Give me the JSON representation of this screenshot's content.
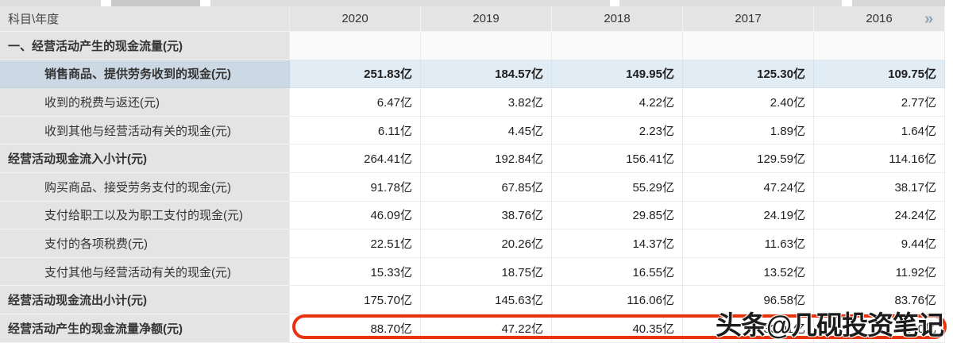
{
  "table": {
    "corner_label": "科目\\年度",
    "years": [
      "2020",
      "2019",
      "2018",
      "2017",
      "2016"
    ],
    "pager_icon": "»",
    "rows": [
      {
        "label": "一、经营活动产生的现金流量(元)",
        "style": "section",
        "values": [
          "",
          "",
          "",
          "",
          ""
        ]
      },
      {
        "label": "销售商品、提供劳务收到的现金(元)",
        "style": "highlight",
        "values": [
          "251.83亿",
          "184.57亿",
          "149.95亿",
          "125.30亿",
          "109.75亿"
        ]
      },
      {
        "label": "收到的税费与返还(元)",
        "style": "item",
        "values": [
          "6.47亿",
          "3.82亿",
          "4.22亿",
          "2.40亿",
          "2.77亿"
        ]
      },
      {
        "label": "收到其他与经营活动有关的现金(元)",
        "style": "item",
        "values": [
          "6.11亿",
          "4.45亿",
          "2.23亿",
          "1.89亿",
          "1.64亿"
        ]
      },
      {
        "label": "经营活动现金流入小计(元)",
        "style": "subtotal",
        "values": [
          "264.41亿",
          "192.84亿",
          "156.41亿",
          "129.59亿",
          "114.16亿"
        ]
      },
      {
        "label": "购买商品、接受劳务支付的现金(元)",
        "style": "item",
        "values": [
          "91.78亿",
          "67.85亿",
          "55.29亿",
          "47.24亿",
          "38.17亿"
        ]
      },
      {
        "label": "支付给职工以及为职工支付的现金(元)",
        "style": "item",
        "values": [
          "46.09亿",
          "38.76亿",
          "29.85亿",
          "24.19亿",
          "24.24亿"
        ]
      },
      {
        "label": "支付的各项税费(元)",
        "style": "item",
        "values": [
          "22.51亿",
          "20.26亿",
          "14.37亿",
          "11.63亿",
          "9.44亿"
        ]
      },
      {
        "label": "支付其他与经营活动有关的现金(元)",
        "style": "item",
        "values": [
          "15.33亿",
          "18.75亿",
          "16.55亿",
          "13.52亿",
          "11.92亿"
        ]
      },
      {
        "label": "经营活动现金流出小计(元)",
        "style": "subtotal",
        "values": [
          "175.70亿",
          "145.63亿",
          "116.06亿",
          "96.58亿",
          "83.76亿"
        ]
      },
      {
        "label": "经营活动产生的现金流量净额(元)",
        "style": "subtotal",
        "values": [
          "88.70亿",
          "47.22亿",
          "40.35亿",
          "33.01亿",
          "30.40亿"
        ]
      }
    ]
  },
  "watermark": {
    "text": "头条@几砚投资笔记"
  },
  "colors": {
    "annotation_red": "#e8340e",
    "header_bg": "#e4e4e4",
    "highlight_label_bg": "#ccd9e5",
    "highlight_row_bg": "#e2ecf5",
    "pager_icon_color": "#8fa4b8"
  }
}
